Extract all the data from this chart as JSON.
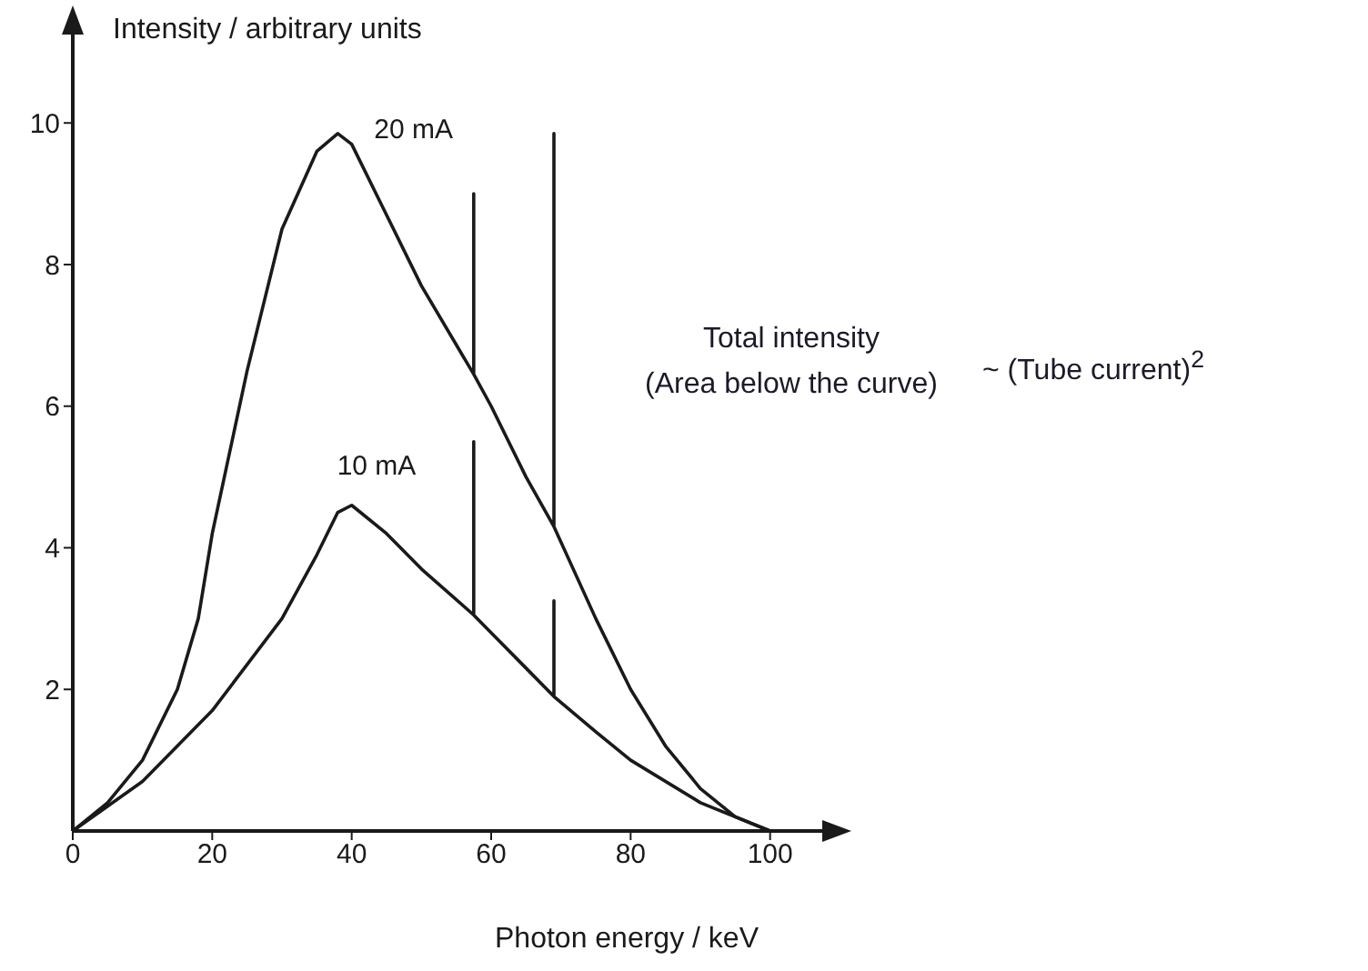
{
  "chart_data": {
    "type": "line",
    "xlabel": "Photon energy / keV",
    "ylabel": "Intensity / arbitrary units",
    "xlim": [
      0,
      108
    ],
    "xticks": [
      0,
      20,
      40,
      60,
      80,
      100
    ],
    "ylim": [
      0,
      11.3
    ],
    "yticks": [
      2,
      4,
      6,
      8,
      10
    ],
    "marker": "none",
    "line_style": "solid",
    "series": [
      {
        "name": "20 mA",
        "color": "#1a1a1a",
        "x": [
          0,
          5,
          10,
          15,
          18,
          20,
          25,
          30,
          35,
          38,
          40,
          45,
          50,
          57.5,
          57.5,
          57.5,
          60,
          65,
          69,
          69,
          69,
          75,
          80,
          85,
          90,
          95,
          100
        ],
        "values": [
          0,
          0.4,
          1.0,
          2.0,
          3.0,
          4.2,
          6.5,
          8.5,
          9.6,
          9.85,
          9.7,
          8.7,
          7.7,
          6.45,
          9.0,
          6.45,
          6.0,
          5.0,
          4.3,
          9.85,
          4.3,
          3.0,
          2.0,
          1.2,
          0.6,
          0.2,
          0
        ]
      },
      {
        "name": "10 mA",
        "color": "#1a1a1a",
        "x": [
          0,
          10,
          20,
          30,
          35,
          38,
          40,
          45,
          50,
          57.5,
          57.5,
          57.5,
          60,
          65,
          69,
          69,
          69,
          75,
          80,
          90,
          100
        ],
        "values": [
          0,
          0.7,
          1.7,
          3.0,
          3.9,
          4.5,
          4.6,
          4.2,
          3.7,
          3.05,
          5.5,
          3.05,
          2.8,
          2.3,
          1.9,
          3.25,
          1.9,
          1.4,
          1.0,
          0.4,
          0
        ]
      }
    ],
    "annotations": [
      "Total intensity",
      "(Area below the curve)",
      "~ (Tube current)$^{2}$"
    ]
  }
}
